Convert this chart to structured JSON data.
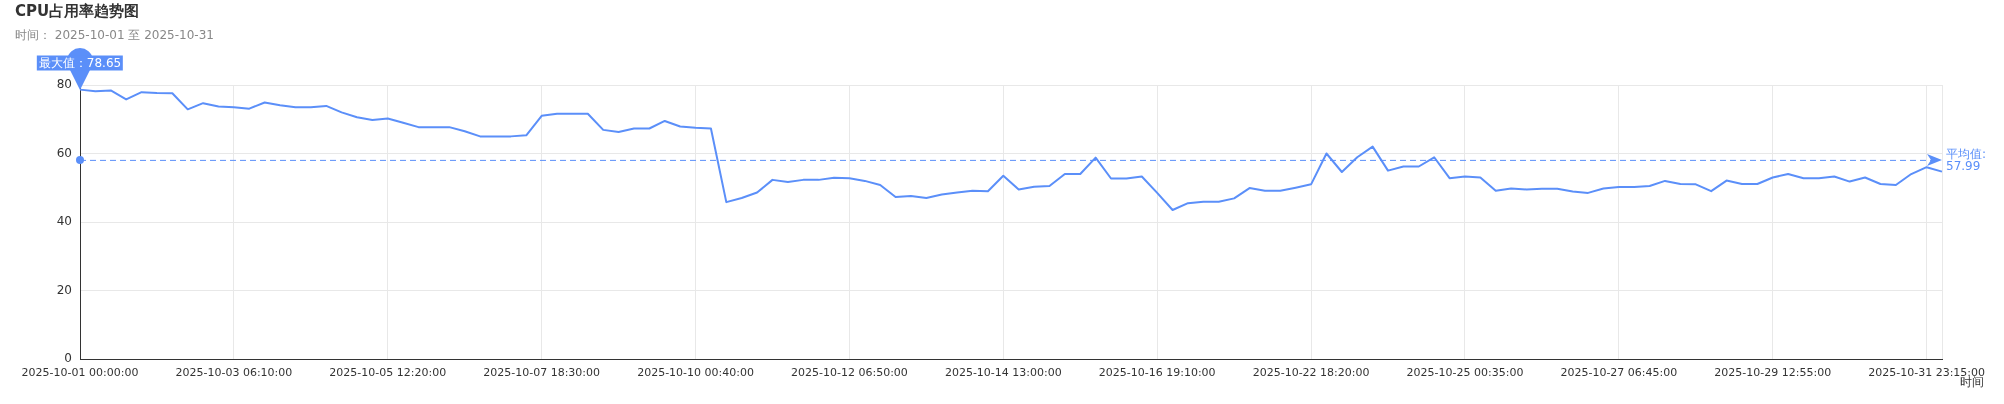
{
  "chart_data": {
    "type": "line",
    "title": "CPU占用率趋势图",
    "subtitle": "时间： 2025-10-01 至 2025-10-31",
    "xlabel": "时间",
    "categories": [
      "2025-10-01 00:00:00",
      null,
      null,
      null,
      null,
      null,
      null,
      null,
      null,
      null,
      "2025-10-03 06:10:00",
      null,
      null,
      null,
      null,
      null,
      null,
      null,
      null,
      null,
      "2025-10-05 12:20:00",
      null,
      null,
      null,
      null,
      null,
      null,
      null,
      null,
      null,
      "2025-10-07 18:30:00",
      null,
      null,
      null,
      null,
      null,
      null,
      null,
      null,
      null,
      "2025-10-10 00:40:00",
      null,
      null,
      null,
      null,
      null,
      null,
      null,
      null,
      null,
      "2025-10-12 06:50:00",
      null,
      null,
      null,
      null,
      null,
      null,
      null,
      null,
      null,
      "2025-10-14 13:00:00",
      null,
      null,
      null,
      null,
      null,
      null,
      null,
      null,
      null,
      "2025-10-16 19:10:00",
      null,
      null,
      null,
      null,
      null,
      null,
      null,
      null,
      null,
      "2025-10-22 18:20:00",
      null,
      null,
      null,
      null,
      null,
      null,
      null,
      null,
      null,
      "2025-10-25 00:35:00",
      null,
      null,
      null,
      null,
      null,
      null,
      null,
      null,
      null,
      "2025-10-27 06:45:00",
      null,
      null,
      null,
      null,
      null,
      null,
      null,
      null,
      null,
      "2025-10-29 12:55:00",
      null,
      null,
      null,
      null,
      null,
      null,
      null,
      null,
      null,
      "2025-10-31 23:15:00",
      null
    ],
    "series": [
      {
        "color": "#5b8ff9",
        "values": [
          78.65,
          78.2,
          78.4,
          75.8,
          77.9,
          77.7,
          77.6,
          72.9,
          74.7,
          73.7,
          73.5,
          73.1,
          74.9,
          74.1,
          73.5,
          73.5,
          73.9,
          72.0,
          70.6,
          69.8,
          70.2,
          69.0,
          67.7,
          67.7,
          67.7,
          66.5,
          65.0,
          65.0,
          65.0,
          65.3,
          71.0,
          71.6,
          71.6,
          71.6,
          66.9,
          66.3,
          67.3,
          67.3,
          69.5,
          67.9,
          67.5,
          67.3,
          45.8,
          47.0,
          48.6,
          52.3,
          51.7,
          52.3,
          52.3,
          52.9,
          52.8,
          52.0,
          50.8,
          47.3,
          47.6,
          47.0,
          48.0,
          48.6,
          49.1,
          49.0,
          53.5,
          49.5,
          50.3,
          50.5,
          54.0,
          54.0,
          58.8,
          52.7,
          52.7,
          53.3,
          48.5,
          43.5,
          45.5,
          45.9,
          45.9,
          46.9,
          49.9,
          49.1,
          49.1,
          50.0,
          51.0,
          60.0,
          54.6,
          58.9,
          62.0,
          55.0,
          56.2,
          56.2,
          58.9,
          52.8,
          53.3,
          53.0,
          49.1,
          49.8,
          49.5,
          49.7,
          49.7,
          48.9,
          48.5,
          49.8,
          50.2,
          50.2,
          50.5,
          52.0,
          51.1,
          51.0,
          49.0,
          52.1,
          51.1,
          51.1,
          53.0,
          54.0,
          52.8,
          52.8,
          53.3,
          51.8,
          53.0,
          51.1,
          50.8,
          54.0,
          56.0,
          54.7
        ]
      }
    ],
    "ylim": [
      0,
      80
    ],
    "yticks": [
      0,
      20,
      40,
      60,
      80
    ],
    "grid": true,
    "marker": "none",
    "line_style": "solid",
    "ref_lines": [
      {
        "axis": "y",
        "value": 57.99,
        "label": "平均值: 57.99",
        "color": "#5b8ff9",
        "line_style": "dashed"
      }
    ],
    "annotations": [
      {
        "text": "最大值：78.65",
        "x": "2025-10-01 00:00:00",
        "y": 78.65
      }
    ]
  }
}
